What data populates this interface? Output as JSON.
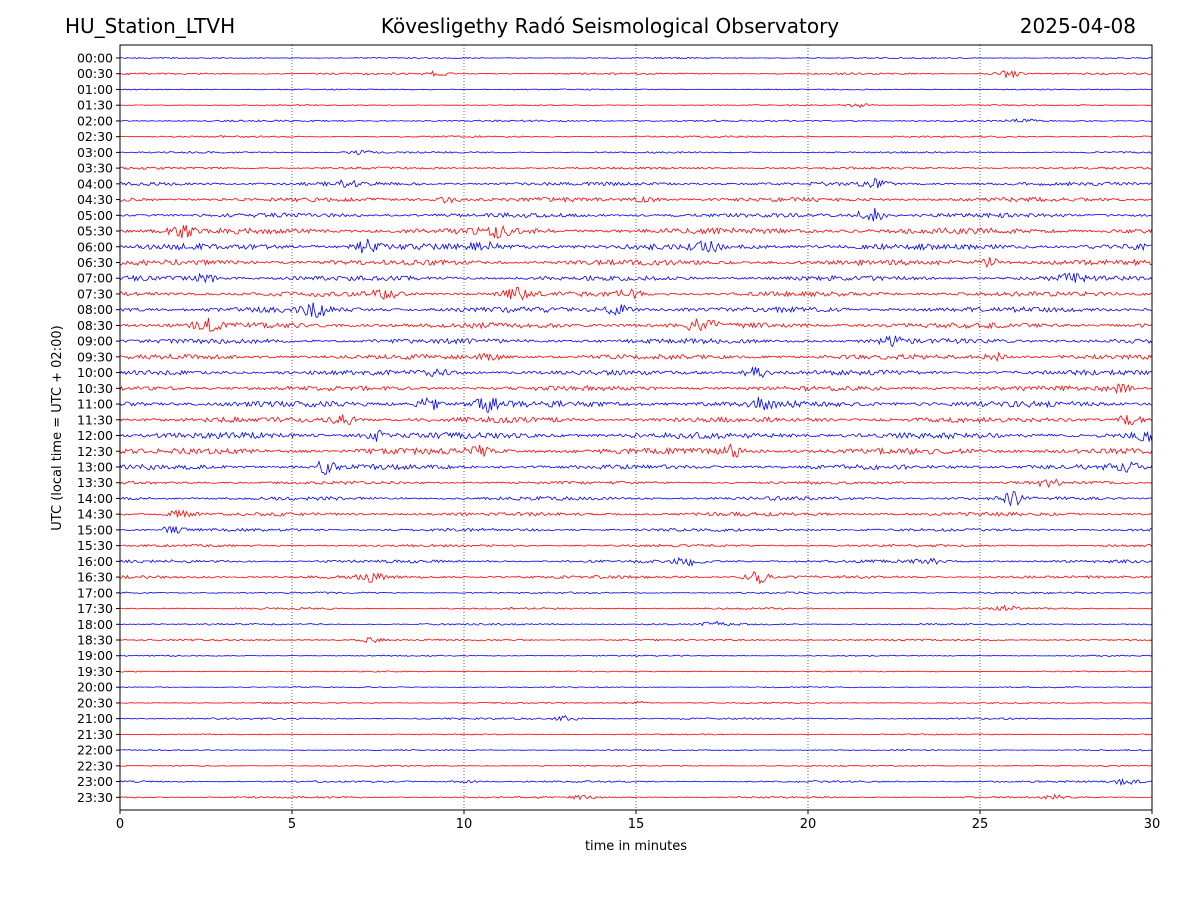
{
  "header": {
    "station": "HU_Station_LTVH",
    "observatory": "Kövesligethy Radó Seismological Observatory",
    "date": "2025-04-08"
  },
  "chart_data": {
    "type": "line",
    "title": "Kövesligethy Radó Seismological Observatory",
    "xlabel": "time in minutes",
    "ylabel": "UTC (local time = UTC + 02:00)",
    "xlim": [
      0,
      30
    ],
    "x_ticks": [
      "0",
      "5",
      "10",
      "15",
      "20",
      "25",
      "30"
    ],
    "x_tick_values": [
      0,
      5,
      10,
      15,
      20,
      25,
      30
    ],
    "grid": "vertical dotted lines at 5-minute ticks",
    "colors": {
      "even_rows": "#0000ff",
      "odd_rows": "#ff0000"
    },
    "row_labels": [
      "00:00",
      "00:30",
      "01:00",
      "01:30",
      "02:00",
      "02:30",
      "03:00",
      "03:30",
      "04:00",
      "04:30",
      "05:00",
      "05:30",
      "06:00",
      "06:30",
      "07:00",
      "07:30",
      "08:00",
      "08:30",
      "09:00",
      "09:30",
      "10:00",
      "10:30",
      "11:00",
      "11:30",
      "12:00",
      "12:30",
      "13:00",
      "13:30",
      "14:00",
      "14:30",
      "15:00",
      "15:30",
      "16:00",
      "16:30",
      "17:00",
      "17:30",
      "18:00",
      "18:30",
      "19:00",
      "19:30",
      "20:00",
      "20:30",
      "21:00",
      "21:30",
      "22:00",
      "22:30",
      "23:00",
      "23:30"
    ],
    "row_noise_amplitude": [
      0.2,
      0.3,
      0.2,
      0.2,
      0.3,
      0.3,
      0.3,
      0.4,
      0.6,
      0.7,
      0.7,
      1.0,
      1.0,
      0.9,
      0.8,
      0.8,
      0.9,
      0.9,
      0.8,
      0.8,
      0.8,
      0.8,
      1.0,
      0.9,
      1.0,
      1.0,
      0.8,
      0.5,
      0.6,
      0.6,
      0.5,
      0.4,
      0.5,
      0.5,
      0.3,
      0.3,
      0.3,
      0.3,
      0.2,
      0.2,
      0.2,
      0.2,
      0.3,
      0.2,
      0.2,
      0.2,
      0.3,
      0.3
    ],
    "bursts": [
      {
        "row": "00:30",
        "minute": 25.8,
        "amplitude": 1.2
      },
      {
        "row": "00:30",
        "minute": 9.2,
        "amplitude": 0.6
      },
      {
        "row": "01:30",
        "minute": 21.5,
        "amplitude": 0.6
      },
      {
        "row": "02:00",
        "minute": 26.3,
        "amplitude": 0.6
      },
      {
        "row": "03:00",
        "minute": 7.0,
        "amplitude": 0.6
      },
      {
        "row": "04:00",
        "minute": 6.5,
        "amplitude": 1.0
      },
      {
        "row": "04:00",
        "minute": 22.0,
        "amplitude": 1.2
      },
      {
        "row": "04:30",
        "minute": 9.5,
        "amplitude": 0.9
      },
      {
        "row": "04:30",
        "minute": 15.3,
        "amplitude": 0.8
      },
      {
        "row": "05:00",
        "minute": 21.8,
        "amplitude": 2.5
      },
      {
        "row": "05:30",
        "minute": 1.8,
        "amplitude": 1.8
      },
      {
        "row": "05:30",
        "minute": 11.0,
        "amplitude": 1.3
      },
      {
        "row": "06:00",
        "minute": 7.2,
        "amplitude": 2.0
      },
      {
        "row": "06:00",
        "minute": 10.5,
        "amplitude": 1.6
      },
      {
        "row": "06:00",
        "minute": 17.0,
        "amplitude": 1.6
      },
      {
        "row": "06:30",
        "minute": 25.3,
        "amplitude": 1.3
      },
      {
        "row": "07:00",
        "minute": 2.5,
        "amplitude": 1.2
      },
      {
        "row": "07:00",
        "minute": 27.6,
        "amplitude": 1.2
      },
      {
        "row": "07:30",
        "minute": 7.7,
        "amplitude": 1.5
      },
      {
        "row": "07:30",
        "minute": 11.5,
        "amplitude": 1.6
      },
      {
        "row": "07:30",
        "minute": 14.8,
        "amplitude": 1.2
      },
      {
        "row": "08:00",
        "minute": 5.7,
        "amplitude": 1.8
      },
      {
        "row": "08:00",
        "minute": 14.5,
        "amplitude": 1.5
      },
      {
        "row": "08:30",
        "minute": 2.5,
        "amplitude": 2.0
      },
      {
        "row": "08:30",
        "minute": 16.9,
        "amplitude": 2.5
      },
      {
        "row": "09:00",
        "minute": 22.5,
        "amplitude": 1.2
      },
      {
        "row": "09:30",
        "minute": 25.4,
        "amplitude": 1.3
      },
      {
        "row": "09:30",
        "minute": 10.8,
        "amplitude": 1.0
      },
      {
        "row": "10:00",
        "minute": 18.5,
        "amplitude": 1.6
      },
      {
        "row": "10:00",
        "minute": 9.2,
        "amplitude": 1.1
      },
      {
        "row": "10:30",
        "minute": 29.0,
        "amplitude": 1.3
      },
      {
        "row": "11:00",
        "minute": 9.0,
        "amplitude": 1.8
      },
      {
        "row": "11:00",
        "minute": 10.7,
        "amplitude": 2.0
      },
      {
        "row": "11:00",
        "minute": 18.8,
        "amplitude": 2.0
      },
      {
        "row": "11:30",
        "minute": 6.5,
        "amplitude": 1.4
      },
      {
        "row": "11:30",
        "minute": 29.4,
        "amplitude": 1.8
      },
      {
        "row": "12:00",
        "minute": 7.5,
        "amplitude": 1.5
      },
      {
        "row": "12:00",
        "minute": 29.8,
        "amplitude": 1.5
      },
      {
        "row": "12:30",
        "minute": 17.8,
        "amplitude": 1.6
      },
      {
        "row": "12:30",
        "minute": 10.5,
        "amplitude": 1.3
      },
      {
        "row": "13:00",
        "minute": 6.0,
        "amplitude": 2.0
      },
      {
        "row": "13:00",
        "minute": 29.2,
        "amplitude": 1.3
      },
      {
        "row": "13:30",
        "minute": 27.0,
        "amplitude": 1.2
      },
      {
        "row": "14:00",
        "minute": 26.0,
        "amplitude": 1.8
      },
      {
        "row": "14:30",
        "minute": 1.8,
        "amplitude": 1.5
      },
      {
        "row": "15:00",
        "minute": 1.5,
        "amplitude": 0.9
      },
      {
        "row": "16:00",
        "minute": 16.5,
        "amplitude": 1.3
      },
      {
        "row": "16:00",
        "minute": 23.5,
        "amplitude": 0.9
      },
      {
        "row": "16:30",
        "minute": 7.3,
        "amplitude": 1.2
      },
      {
        "row": "16:30",
        "minute": 18.5,
        "amplitude": 2.0
      },
      {
        "row": "17:30",
        "minute": 25.8,
        "amplitude": 0.7
      },
      {
        "row": "18:00",
        "minute": 17.3,
        "amplitude": 0.8
      },
      {
        "row": "18:30",
        "minute": 7.3,
        "amplitude": 0.7
      },
      {
        "row": "20:30",
        "minute": 15.0,
        "amplitude": 0.5
      },
      {
        "row": "21:00",
        "minute": 13.0,
        "amplitude": 0.8
      },
      {
        "row": "23:00",
        "minute": 29.3,
        "amplitude": 1.3
      },
      {
        "row": "23:00",
        "minute": 10.0,
        "amplitude": 0.5
      },
      {
        "row": "23:30",
        "minute": 27.3,
        "amplitude": 0.7
      },
      {
        "row": "23:30",
        "minute": 13.5,
        "amplitude": 0.5
      }
    ]
  }
}
